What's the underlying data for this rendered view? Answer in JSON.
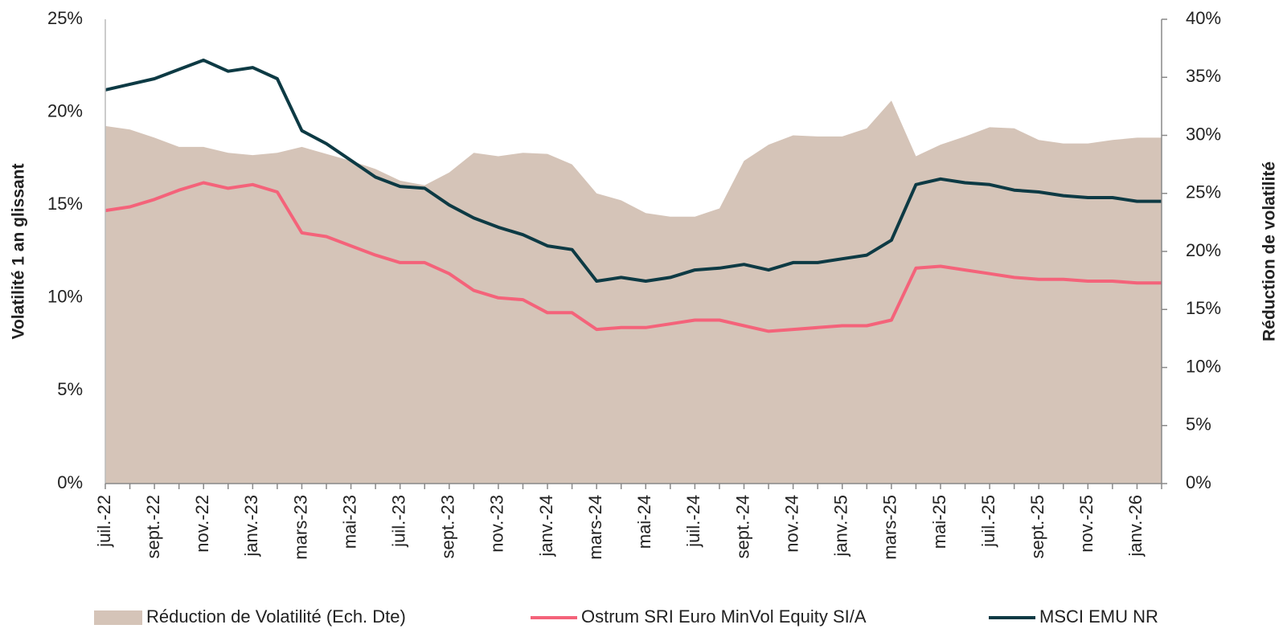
{
  "chart_data": {
    "type": "line",
    "y_label": "Volatilité 1 an glissant",
    "y2_label": "Réduction de volatilité",
    "categories": [
      "juil.-22",
      null,
      "sept.-22",
      null,
      "nov.-22",
      null,
      "janv.-23",
      null,
      "mars-23",
      null,
      "mai-23",
      null,
      "juil.-23",
      null,
      "sept.-23",
      null,
      "nov.-23",
      null,
      "janv.-24",
      null,
      "mars-24",
      null,
      "mai-24",
      null,
      "juil.-24",
      null,
      "sept.-24",
      null,
      "nov.-24",
      null,
      "janv.-25",
      null,
      "mars-25",
      null,
      "mai-25",
      null,
      "juil.-25",
      null,
      "sept.-25",
      null,
      "nov.-25",
      null,
      "janv.-26",
      null
    ],
    "series": [
      {
        "name": "Réduction de Volatilité (Ech. Dte)",
        "color": "#d5c4b8",
        "kind": "area",
        "axis": "y2",
        "values": [
          30.8,
          30.5,
          29.8,
          29.0,
          29.0,
          28.5,
          28.3,
          28.5,
          29.0,
          28.4,
          27.8,
          27.1,
          26.1,
          25.7,
          26.8,
          28.5,
          28.2,
          28.5,
          28.4,
          27.5,
          25.0,
          24.4,
          23.3,
          23.0,
          23.0,
          23.7,
          27.8,
          29.2,
          30.0,
          29.9,
          29.9,
          30.6,
          33.0,
          28.2,
          29.2,
          29.9,
          30.7,
          30.6,
          29.6,
          29.3,
          29.3,
          29.6,
          29.8,
          29.8
        ]
      },
      {
        "name": "Ostrum SRI Euro MinVol Equity SI/A",
        "color": "#f4637a",
        "kind": "line",
        "values": [
          14.7,
          14.9,
          15.3,
          15.8,
          16.2,
          15.9,
          16.1,
          15.7,
          13.5,
          13.3,
          12.8,
          12.3,
          11.9,
          11.9,
          11.3,
          10.4,
          10.0,
          9.9,
          9.2,
          9.2,
          8.3,
          8.4,
          8.4,
          8.6,
          8.8,
          8.8,
          8.5,
          8.2,
          8.3,
          8.4,
          8.5,
          8.5,
          8.8,
          11.6,
          11.7,
          11.5,
          11.3,
          11.1,
          11.0,
          11.0,
          10.9,
          10.9,
          10.8,
          10.8
        ]
      },
      {
        "name": "MSCI EMU NR",
        "color": "#0d3a44",
        "kind": "line",
        "values": [
          21.2,
          21.5,
          21.8,
          22.3,
          22.8,
          22.2,
          22.4,
          21.8,
          19.0,
          18.3,
          17.4,
          16.5,
          16.0,
          15.9,
          15.0,
          14.3,
          13.8,
          13.4,
          12.8,
          12.6,
          10.9,
          11.1,
          10.9,
          11.1,
          11.5,
          11.6,
          11.8,
          11.5,
          11.9,
          11.9,
          12.1,
          12.3,
          13.1,
          16.1,
          16.4,
          16.2,
          16.1,
          15.8,
          15.7,
          15.5,
          15.4,
          15.4,
          15.2,
          15.2
        ]
      }
    ],
    "ylim": [
      0,
      25
    ],
    "yticks": [
      {
        "value": 0,
        "label": "0%"
      },
      {
        "value": 5,
        "label": "5%"
      },
      {
        "value": 10,
        "label": "10%"
      },
      {
        "value": 15,
        "label": "15%"
      },
      {
        "value": 20,
        "label": "20%"
      },
      {
        "value": 25,
        "label": "25%"
      }
    ],
    "y2lim": [
      0,
      40
    ],
    "y2ticks": [
      {
        "value": 0,
        "label": "0%"
      },
      {
        "value": 5,
        "label": "5%"
      },
      {
        "value": 10,
        "label": "10%"
      },
      {
        "value": 15,
        "label": "15%"
      },
      {
        "value": 20,
        "label": "20%"
      },
      {
        "value": 25,
        "label": "25%"
      },
      {
        "value": 30,
        "label": "30%"
      },
      {
        "value": 35,
        "label": "35%"
      },
      {
        "value": 40,
        "label": "40%"
      }
    ],
    "grid": false,
    "legend": "bottom"
  }
}
